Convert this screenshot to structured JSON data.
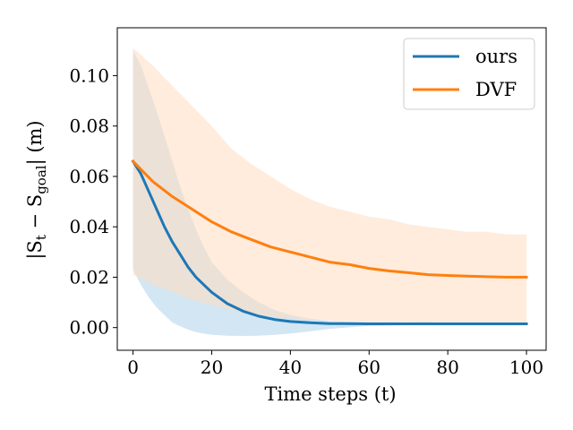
{
  "chart_data": {
    "type": "line",
    "title": "",
    "xlabel": "Time steps (t)",
    "ylabel": {
      "prefix": "|S",
      "sub1": "t",
      "mid": " − S",
      "sub2": "goal",
      "suffix": "| (m)"
    },
    "xlim": [
      -4,
      105
    ],
    "ylim": [
      -0.009,
      0.119
    ],
    "x_ticks": [
      0,
      20,
      40,
      60,
      80,
      100
    ],
    "x_tick_labels": [
      "0",
      "20",
      "40",
      "60",
      "80",
      "100"
    ],
    "y_ticks": [
      0.0,
      0.02,
      0.04,
      0.06,
      0.08,
      0.1
    ],
    "y_tick_labels": [
      "0.00",
      "0.02",
      "0.04",
      "0.06",
      "0.08",
      "0.10"
    ],
    "grid": false,
    "legend_position": "top-right",
    "series": [
      {
        "name": "ours",
        "color": "#1f77b4",
        "band_color": "#aed1ea",
        "x": [
          0,
          2,
          4,
          6,
          8,
          10,
          12,
          14,
          16,
          18,
          20,
          24,
          28,
          32,
          36,
          40,
          45,
          50,
          60,
          70,
          80,
          90,
          100
        ],
        "y": [
          0.066,
          0.061,
          0.054,
          0.047,
          0.04,
          0.034,
          0.029,
          0.024,
          0.02,
          0.017,
          0.014,
          0.0095,
          0.0065,
          0.0045,
          0.0032,
          0.0024,
          0.0019,
          0.0016,
          0.0015,
          0.0015,
          0.0015,
          0.0015,
          0.0015
        ],
        "lower": [
          0.023,
          0.017,
          0.012,
          0.008,
          0.005,
          0.002,
          0.0005,
          -0.0008,
          -0.0018,
          -0.0024,
          -0.0028,
          -0.0032,
          -0.0033,
          -0.0032,
          -0.0029,
          -0.0024,
          -0.0015,
          -0.0005,
          0.0007,
          0.001,
          0.001,
          0.001,
          0.001
        ],
        "upper": [
          0.11,
          0.104,
          0.095,
          0.086,
          0.076,
          0.066,
          0.056,
          0.047,
          0.039,
          0.032,
          0.026,
          0.019,
          0.014,
          0.01,
          0.007,
          0.005,
          0.0035,
          0.0026,
          0.0022,
          0.0021,
          0.002,
          0.002,
          0.002
        ]
      },
      {
        "name": "DVF",
        "color": "#ff7f0e",
        "band_color": "#ffdcbf",
        "x": [
          0,
          5,
          10,
          15,
          20,
          25,
          30,
          35,
          40,
          45,
          50,
          55,
          60,
          65,
          70,
          75,
          80,
          85,
          90,
          95,
          100
        ],
        "y": [
          0.066,
          0.058,
          0.052,
          0.047,
          0.042,
          0.038,
          0.035,
          0.032,
          0.03,
          0.028,
          0.026,
          0.025,
          0.0235,
          0.0225,
          0.0218,
          0.021,
          0.0207,
          0.0204,
          0.0202,
          0.02,
          0.02
        ],
        "lower": [
          0.021,
          0.017,
          0.014,
          0.011,
          0.009,
          0.007,
          0.0055,
          0.0045,
          0.0038,
          0.0032,
          0.0028,
          0.0025,
          0.0023,
          0.0022,
          0.0021,
          0.002,
          0.002,
          0.002,
          0.002,
          0.002,
          0.002
        ],
        "upper": [
          0.111,
          0.104,
          0.096,
          0.088,
          0.08,
          0.071,
          0.065,
          0.06,
          0.055,
          0.051,
          0.048,
          0.046,
          0.044,
          0.043,
          0.041,
          0.04,
          0.039,
          0.038,
          0.038,
          0.037,
          0.037
        ]
      }
    ]
  }
}
